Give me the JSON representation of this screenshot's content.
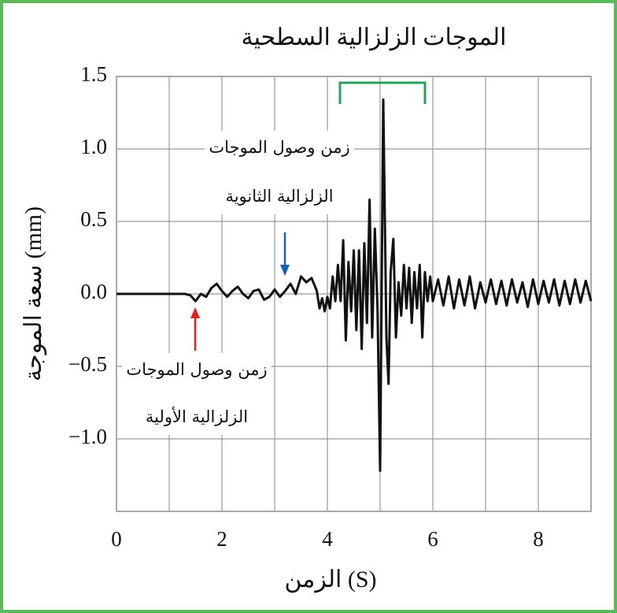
{
  "chart_data": {
    "type": "line",
    "title": "الموجات الزلزالية السطحية",
    "x_label": "الزمن (S)",
    "y_label": "سعة الموجة (mm)",
    "annotations": [
      [
        "زمن وصول الموجات",
        "الزلزالية الثانوية"
      ],
      [
        "زمن وصول الموجات",
        "الزلزالية الأولية"
      ]
    ],
    "xlim": [
      0,
      9
    ],
    "ylim": [
      -1.5,
      1.5
    ],
    "xticks": [
      0,
      2,
      4,
      6,
      8
    ],
    "minor_xticks": [
      1,
      3,
      5,
      7,
      9
    ],
    "yticks": [
      {
        "value": -1.5,
        "label": ""
      },
      {
        "value": -1.0,
        "label": "−1.0"
      },
      {
        "value": -0.5,
        "label": "−0.5"
      },
      {
        "value": 0,
        "label": "0.0"
      },
      {
        "value": 0.5,
        "label": "0.5"
      },
      {
        "value": 1.0,
        "label": "1.0"
      },
      {
        "value": 1.5,
        "label": "1.5"
      }
    ],
    "grid": true,
    "series": [
      {
        "color": "#111111",
        "x": [
          0,
          1.3,
          1.4,
          1.5,
          1.6,
          1.7,
          1.8,
          1.9,
          2.0,
          2.1,
          2.2,
          2.3,
          2.4,
          2.5,
          2.6,
          2.7,
          2.8,
          2.9,
          3.0,
          3.1,
          3.2,
          3.3,
          3.4,
          3.5,
          3.6,
          3.7,
          3.8,
          3.85,
          3.9,
          3.95,
          4.0,
          4.05,
          4.1,
          4.15,
          4.2,
          4.25,
          4.3,
          4.35,
          4.4,
          4.45,
          4.5,
          4.55,
          4.6,
          4.65,
          4.7,
          4.75,
          4.8,
          4.85,
          4.9,
          4.95,
          5.0,
          5.06,
          5.12,
          5.16,
          5.2,
          5.25,
          5.3,
          5.35,
          5.4,
          5.45,
          5.5,
          5.55,
          5.6,
          5.65,
          5.7,
          5.75,
          5.8,
          5.85,
          5.9,
          5.95,
          6.0,
          6.1,
          6.2,
          6.3,
          6.4,
          6.5,
          6.6,
          6.7,
          6.8,
          6.9,
          7.0,
          7.1,
          7.2,
          7.3,
          7.4,
          7.5,
          7.6,
          7.7,
          7.8,
          7.9,
          8.0,
          8.1,
          8.2,
          8.3,
          8.4,
          8.5,
          8.6,
          8.7,
          8.8,
          8.9,
          9.0
        ],
        "values": [
          0,
          0,
          -0.01,
          -0.05,
          0.0,
          -0.02,
          0.04,
          0.07,
          0.02,
          -0.02,
          0.02,
          0.05,
          0.0,
          -0.03,
          0.02,
          0.03,
          -0.04,
          -0.02,
          0.03,
          -0.02,
          0.02,
          0.07,
          0.0,
          0.12,
          0.08,
          0.11,
          0.02,
          -0.1,
          -0.03,
          -0.12,
          -0.02,
          -0.1,
          0.12,
          -0.05,
          0.2,
          -0.05,
          0.37,
          -0.32,
          0.22,
          -0.12,
          0.3,
          -0.25,
          0.3,
          -0.38,
          0.35,
          -0.2,
          0.65,
          -0.3,
          0.45,
          -0.1,
          -1.22,
          1.34,
          -0.3,
          -0.62,
          0.15,
          0.38,
          -0.3,
          0.08,
          -0.15,
          0.2,
          -0.1,
          0.18,
          -0.2,
          0.15,
          -0.1,
          0.2,
          -0.3,
          0.15,
          -0.05,
          0.12,
          -0.05,
          0.1,
          -0.08,
          0.12,
          -0.1,
          0.1,
          -0.08,
          0.12,
          -0.1,
          0.08,
          -0.06,
          0.1,
          -0.07,
          0.09,
          -0.08,
          0.1,
          -0.06,
          0.08,
          -0.09,
          0.1,
          -0.07,
          0.09,
          -0.06,
          0.1,
          -0.08,
          0.09,
          -0.07,
          0.1,
          -0.06,
          0.09,
          -0.05
        ]
      }
    ]
  }
}
